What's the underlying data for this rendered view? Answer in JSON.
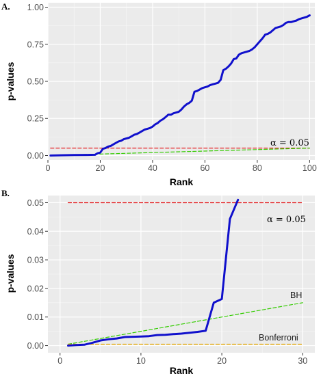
{
  "chart_data": [
    {
      "panel_label": "A.",
      "type": "line",
      "xlabel": "Rank",
      "ylabel": "p-values",
      "xlim": [
        0,
        102
      ],
      "ylim": [
        -0.03,
        1.03
      ],
      "x_ticks": [
        0,
        20,
        40,
        60,
        80,
        100
      ],
      "x_tick_labels": [
        "0",
        "20",
        "40",
        "60",
        "80",
        "100"
      ],
      "y_ticks": [
        0,
        0.25,
        0.5,
        0.75,
        1
      ],
      "y_tick_labels": [
        "0.00",
        "0.25",
        "0.50",
        "0.75",
        "1.00"
      ],
      "grid": true,
      "background": "#ebebeb",
      "annotation": "α = 0.05",
      "series": [
        {
          "style": "solid",
          "color": "#1010cc",
          "x": [
            1,
            5,
            10,
            15,
            18,
            19,
            20,
            21,
            22,
            23,
            24,
            25,
            26,
            27,
            28,
            29,
            30,
            31,
            32,
            33,
            34,
            35,
            36,
            37,
            38,
            39,
            40,
            41,
            42,
            43,
            44,
            45,
            46,
            47,
            48,
            49,
            50,
            51,
            52,
            53,
            54,
            55,
            56,
            57,
            58,
            59,
            60,
            61,
            62,
            63,
            64,
            65,
            66,
            67,
            68,
            69,
            70,
            71,
            72,
            73,
            74,
            75,
            76,
            77,
            78,
            79,
            80,
            81,
            82,
            83,
            84,
            85,
            86,
            87,
            88,
            89,
            90,
            91,
            92,
            93,
            94,
            95,
            96,
            97,
            98,
            99,
            100
          ],
          "y": [
            0.0,
            0.002,
            0.003,
            0.004,
            0.005,
            0.015,
            0.02,
            0.045,
            0.05,
            0.06,
            0.065,
            0.075,
            0.085,
            0.095,
            0.1,
            0.11,
            0.115,
            0.12,
            0.13,
            0.14,
            0.145,
            0.155,
            0.165,
            0.175,
            0.18,
            0.185,
            0.195,
            0.21,
            0.22,
            0.235,
            0.245,
            0.26,
            0.275,
            0.275,
            0.285,
            0.29,
            0.295,
            0.31,
            0.33,
            0.345,
            0.355,
            0.37,
            0.43,
            0.435,
            0.445,
            0.455,
            0.46,
            0.465,
            0.475,
            0.48,
            0.485,
            0.49,
            0.51,
            0.575,
            0.585,
            0.6,
            0.62,
            0.65,
            0.655,
            0.68,
            0.69,
            0.695,
            0.7,
            0.705,
            0.715,
            0.73,
            0.75,
            0.77,
            0.79,
            0.815,
            0.82,
            0.83,
            0.845,
            0.86,
            0.865,
            0.87,
            0.88,
            0.895,
            0.9,
            0.9,
            0.905,
            0.91,
            0.92,
            0.925,
            0.93,
            0.935,
            0.945
          ]
        },
        {
          "style": "dashed",
          "color": "#e41a1c",
          "x": [
            1,
            100
          ],
          "y": [
            0.05,
            0.05
          ]
        },
        {
          "style": "dashed",
          "color": "#33cc00",
          "x": [
            1,
            100
          ],
          "y": [
            0.0005,
            0.05
          ]
        }
      ]
    },
    {
      "panel_label": "B.",
      "type": "line",
      "xlabel": "Rank",
      "ylabel": "p-values",
      "xlim": [
        -1.5,
        31.5
      ],
      "ylim": [
        -0.0025,
        0.0525
      ],
      "x_ticks": [
        0,
        10,
        20,
        30
      ],
      "x_tick_labels": [
        "0",
        "10",
        "20",
        "30"
      ],
      "y_ticks": [
        0,
        0.01,
        0.02,
        0.03,
        0.04,
        0.05
      ],
      "y_tick_labels": [
        "0.00",
        "0.01",
        "0.02",
        "0.03",
        "0.04",
        "0.05"
      ],
      "grid": true,
      "background": "#ebebeb",
      "annotations": [
        "α = 0.05",
        "BH",
        "Bonferroni"
      ],
      "series": [
        {
          "style": "solid",
          "color": "#1010cc",
          "x": [
            1,
            2,
            3,
            4,
            5,
            6,
            7,
            8,
            9,
            10,
            11,
            12,
            13,
            14,
            15,
            16,
            17,
            18,
            19,
            20,
            21,
            22
          ],
          "y": [
            0.0,
            0.0002,
            0.0003,
            0.001,
            0.0018,
            0.0022,
            0.0025,
            0.003,
            0.0031,
            0.0032,
            0.0033,
            0.0037,
            0.0038,
            0.004,
            0.0042,
            0.0045,
            0.0048,
            0.0052,
            0.015,
            0.0163,
            0.0443,
            0.051
          ]
        },
        {
          "style": "dashed",
          "color": "#e41a1c",
          "x": [
            1,
            30
          ],
          "y": [
            0.05,
            0.05
          ]
        },
        {
          "style": "dashed",
          "color": "#33cc00",
          "x": [
            1,
            30
          ],
          "y": [
            0.0005,
            0.015
          ]
        },
        {
          "style": "dashed",
          "color": "#e6a800",
          "x": [
            1,
            30
          ],
          "y": [
            0.0005,
            0.0005
          ]
        }
      ]
    }
  ]
}
